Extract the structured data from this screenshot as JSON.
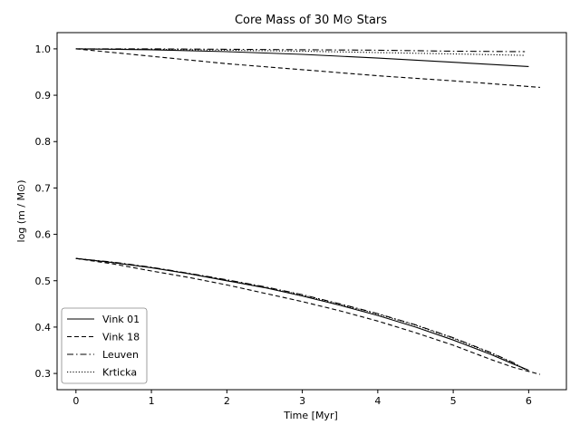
{
  "chart_data": {
    "type": "line",
    "title": "Core Mass of 30 M⊙ Stars",
    "xlabel": "Time [Myr]",
    "ylabel": "log (m / M⊙)",
    "xlim": [
      -0.25,
      6.5
    ],
    "ylim": [
      0.265,
      1.035
    ],
    "xticks": [
      0,
      1,
      2,
      3,
      4,
      5,
      6
    ],
    "yticks": [
      0.3,
      0.4,
      0.5,
      0.6,
      0.7,
      0.8,
      0.9,
      1.0
    ],
    "xtick_labels": [
      "0",
      "1",
      "2",
      "3",
      "4",
      "5",
      "6"
    ],
    "ytick_labels": [
      "0.3",
      "0.4",
      "0.5",
      "0.6",
      "0.7",
      "0.8",
      "0.9",
      "1.0"
    ],
    "grid": false,
    "legend_position": "lower-left",
    "series": [
      {
        "name": "Vink 01",
        "style": "solid",
        "color": "#000000",
        "upper": {
          "x": [
            0,
            1,
            2,
            3,
            4,
            5,
            6.0
          ],
          "y": [
            1.0,
            0.998,
            0.994,
            0.988,
            0.98,
            0.971,
            0.962
          ]
        },
        "lower": {
          "x": [
            0,
            0.5,
            1,
            1.5,
            2,
            2.5,
            3,
            3.5,
            4,
            4.5,
            5,
            5.5,
            5.8,
            6.0
          ],
          "y": [
            0.548,
            0.539,
            0.528,
            0.515,
            0.5,
            0.485,
            0.467,
            0.447,
            0.425,
            0.4,
            0.372,
            0.341,
            0.32,
            0.307
          ]
        }
      },
      {
        "name": "Vink 18",
        "style": "dashed",
        "color": "#000000",
        "upper": {
          "x": [
            0,
            1,
            2,
            3,
            4,
            5,
            6.15
          ],
          "y": [
            1.0,
            0.984,
            0.968,
            0.955,
            0.942,
            0.931,
            0.917
          ]
        },
        "lower": {
          "x": [
            0,
            0.5,
            1,
            1.5,
            2,
            2.5,
            3,
            3.5,
            4,
            4.5,
            5,
            5.5,
            5.8,
            6.15
          ],
          "y": [
            0.548,
            0.536,
            0.521,
            0.507,
            0.491,
            0.473,
            0.455,
            0.435,
            0.413,
            0.388,
            0.361,
            0.33,
            0.313,
            0.298
          ]
        }
      },
      {
        "name": "Leuven",
        "style": "dashdot",
        "color": "#000000",
        "upper": {
          "x": [
            0,
            1,
            2,
            3,
            4,
            5,
            5.95
          ],
          "y": [
            1.0,
            1.0,
            0.999,
            0.998,
            0.997,
            0.995,
            0.994
          ]
        },
        "lower": {
          "x": [
            0,
            0.5,
            1,
            1.5,
            2,
            2.5,
            3,
            3.5,
            4,
            4.5,
            5,
            5.5,
            5.8,
            5.95
          ],
          "y": [
            0.548,
            0.54,
            0.529,
            0.516,
            0.502,
            0.487,
            0.47,
            0.45,
            0.429,
            0.405,
            0.377,
            0.345,
            0.323,
            0.309
          ]
        }
      },
      {
        "name": "Krticka",
        "style": "dotted",
        "color": "#000000",
        "upper": {
          "x": [
            0,
            1,
            2,
            3,
            4,
            5,
            5.95
          ],
          "y": [
            1.0,
            0.999,
            0.997,
            0.995,
            0.992,
            0.989,
            0.986
          ]
        },
        "lower": {
          "x": [
            0,
            0.5,
            1,
            1.5,
            2,
            2.5,
            3,
            3.5,
            4,
            4.5,
            5,
            5.5,
            5.8,
            5.95
          ],
          "y": [
            0.548,
            0.539,
            0.528,
            0.515,
            0.501,
            0.486,
            0.469,
            0.449,
            0.428,
            0.404,
            0.376,
            0.344,
            0.322,
            0.31
          ]
        }
      }
    ]
  }
}
